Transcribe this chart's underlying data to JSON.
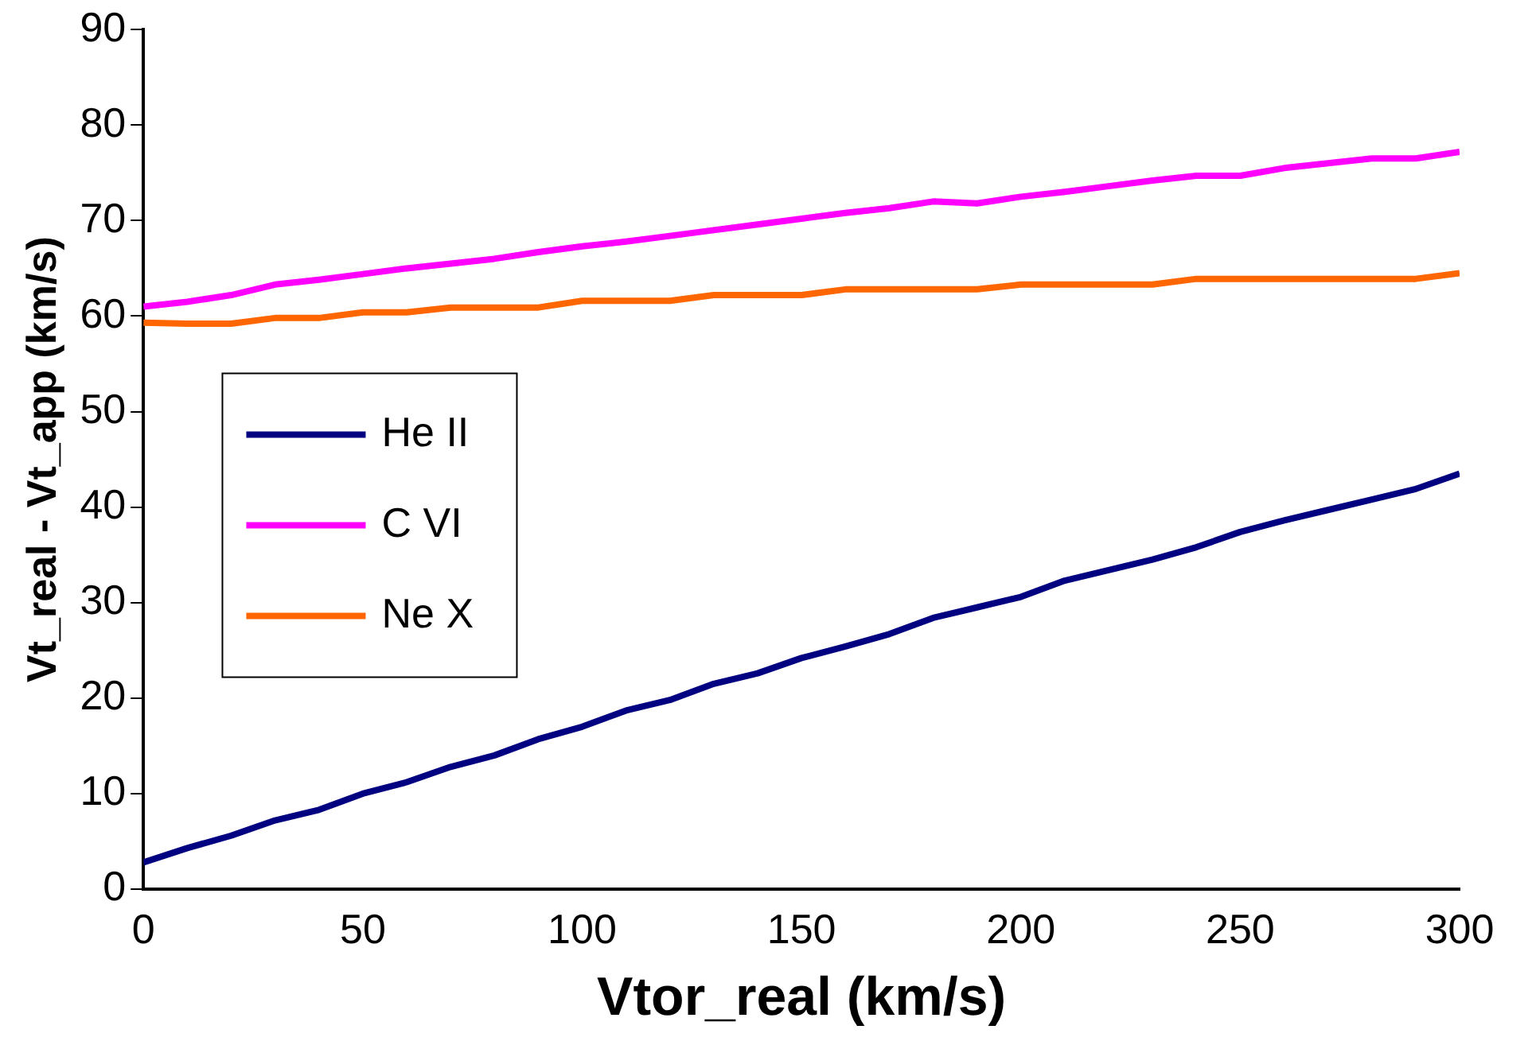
{
  "chart_data": {
    "type": "line",
    "xlabel": "Vtor_real (km/s)",
    "ylabel": "Vt_real - Vt_app (km/s)",
    "x": [
      0,
      10,
      20,
      30,
      40,
      50,
      60,
      70,
      80,
      90,
      100,
      110,
      120,
      130,
      140,
      150,
      160,
      170,
      180,
      190,
      200,
      210,
      220,
      230,
      240,
      250,
      260,
      270,
      280,
      290,
      300
    ],
    "series": [
      {
        "name": "He II",
        "color": "#000080",
        "values": [
          2.8,
          4.3,
          5.6,
          7.2,
          8.3,
          10,
          11.2,
          12.8,
          14,
          15.7,
          17,
          18.7,
          19.8,
          21.5,
          22.6,
          24.2,
          25.4,
          26.7,
          28.4,
          29.5,
          30.6,
          32.3,
          33.4,
          34.5,
          35.8,
          37.4,
          38.6,
          39.7,
          40.8,
          41.9,
          43.5
        ]
      },
      {
        "name": "C VI",
        "color": "#ff00ff",
        "values": [
          61,
          61.5,
          62.2,
          63.3,
          63.8,
          64.4,
          65,
          65.5,
          66,
          66.7,
          67.3,
          67.8,
          68.4,
          69,
          69.6,
          70.2,
          70.8,
          71.3,
          72,
          71.8,
          72.5,
          73,
          73.6,
          74.2,
          74.7,
          74.7,
          75.5,
          76,
          76.5,
          76.5,
          77.2
        ]
      },
      {
        "name": "Ne X",
        "color": "#ff6600",
        "values": [
          59.3,
          59.2,
          59.2,
          59.8,
          59.8,
          60.4,
          60.4,
          60.9,
          60.9,
          60.9,
          61.6,
          61.6,
          61.6,
          62.2,
          62.2,
          62.2,
          62.8,
          62.8,
          62.8,
          62.8,
          63.3,
          63.3,
          63.3,
          63.3,
          63.9,
          63.9,
          63.9,
          63.9,
          63.9,
          63.9,
          64.5
        ]
      }
    ],
    "xlim": [
      0,
      300
    ],
    "xticks": [
      0,
      50,
      100,
      150,
      200,
      250,
      300
    ],
    "ylim": [
      0,
      90
    ],
    "yticks": [
      0,
      10,
      20,
      30,
      40,
      50,
      60,
      70,
      80,
      90
    ],
    "grid": false,
    "legend": "left",
    "marker": "none",
    "line_style": "solid"
  }
}
